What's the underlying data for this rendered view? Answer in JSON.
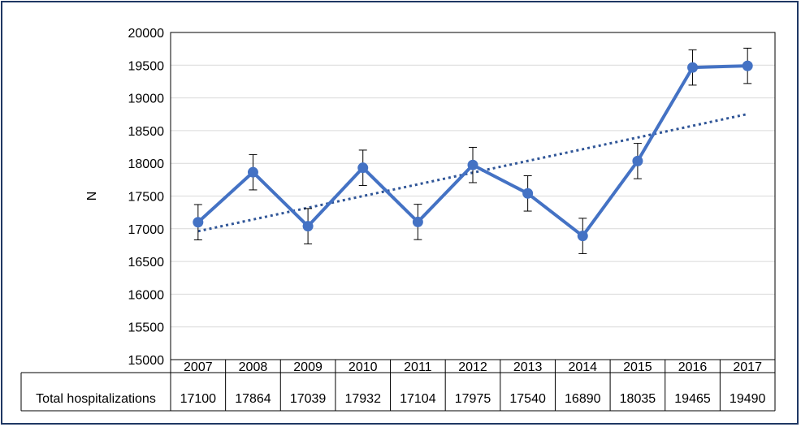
{
  "chart_data": {
    "type": "line",
    "ylabel": "N",
    "ylim": [
      15000,
      20000
    ],
    "yticks": [
      15000,
      15500,
      16000,
      16500,
      17000,
      17500,
      18000,
      18500,
      19000,
      19500,
      20000
    ],
    "categories": [
      "2007",
      "2008",
      "2009",
      "2010",
      "2011",
      "2012",
      "2013",
      "2014",
      "2015",
      "2016",
      "2017"
    ],
    "series": [
      {
        "values": [
          17100,
          17864,
          17039,
          17932,
          17104,
          17975,
          17540,
          16890,
          18035,
          19465,
          19490
        ],
        "error": [
          270,
          270,
          270,
          270,
          270,
          270,
          270,
          270,
          270,
          270,
          270
        ],
        "color": "#4472c4"
      }
    ],
    "trendline": {
      "type": "linear",
      "style": "dotted",
      "color": "#2f5597"
    },
    "grid": true,
    "table": {
      "row_label": "Total hospitalizations",
      "values": [
        "17100",
        "17864",
        "17039",
        "17932",
        "17104",
        "17975",
        "17540",
        "16890",
        "18035",
        "19465",
        "19490"
      ]
    }
  }
}
